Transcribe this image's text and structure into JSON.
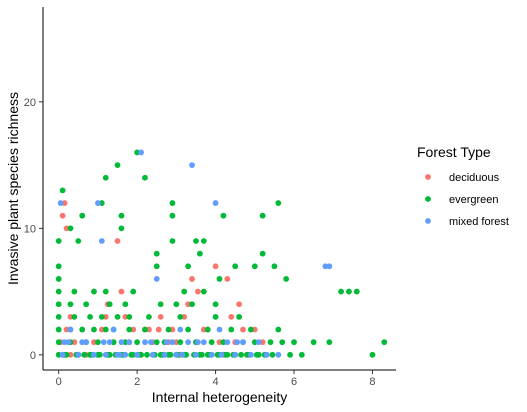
{
  "chart_data": {
    "type": "scatter",
    "xlabel": "Internal heterogeneity",
    "ylabel": "Invasive plant species richness",
    "xlim": [
      -0.4,
      8.6
    ],
    "ylim": [
      -1.2,
      27.5
    ],
    "x_ticks": [
      0,
      2,
      4,
      6,
      8
    ],
    "y_ticks": [
      0,
      10,
      20
    ],
    "x_tick_labels": [
      "0",
      "2",
      "4",
      "6",
      "8"
    ],
    "y_tick_labels": [
      "0",
      "10",
      "20"
    ],
    "grid": false,
    "legend": {
      "title": "Forest Type",
      "placement": "right"
    },
    "series": [
      {
        "name": "deciduous",
        "color": "#F8766D",
        "points": [
          [
            0.1,
            11
          ],
          [
            0.15,
            12
          ],
          [
            0.2,
            10
          ],
          [
            0.05,
            1
          ],
          [
            0.1,
            0
          ],
          [
            0.2,
            2
          ],
          [
            0.3,
            0
          ],
          [
            0.4,
            1
          ],
          [
            0.5,
            0
          ],
          [
            0.7,
            0
          ],
          [
            0.9,
            1
          ],
          [
            1.0,
            0
          ],
          [
            1.1,
            2
          ],
          [
            1.2,
            3
          ],
          [
            1.3,
            0
          ],
          [
            1.5,
            9
          ],
          [
            1.6,
            5
          ],
          [
            1.7,
            3
          ],
          [
            1.8,
            1
          ],
          [
            1.9,
            2
          ],
          [
            2.0,
            0
          ],
          [
            2.2,
            2
          ],
          [
            2.4,
            1
          ],
          [
            2.6,
            3
          ],
          [
            2.7,
            0
          ],
          [
            2.9,
            2
          ],
          [
            3.0,
            1
          ],
          [
            3.1,
            0
          ],
          [
            3.2,
            3
          ],
          [
            3.4,
            6
          ],
          [
            3.5,
            1
          ],
          [
            3.6,
            0
          ],
          [
            3.8,
            2
          ],
          [
            4.0,
            7
          ],
          [
            4.1,
            1
          ],
          [
            4.2,
            0
          ],
          [
            4.3,
            6
          ],
          [
            4.5,
            1
          ],
          [
            4.6,
            4
          ],
          [
            4.8,
            0
          ],
          [
            5.0,
            2
          ],
          [
            5.2,
            1
          ],
          [
            0.3,
            3
          ],
          [
            0.6,
            2
          ],
          [
            0.8,
            0
          ],
          [
            1.4,
            1
          ],
          [
            2.1,
            0
          ],
          [
            2.3,
            2
          ],
          [
            2.8,
            1
          ],
          [
            3.3,
            4
          ],
          [
            3.7,
            2
          ],
          [
            3.9,
            0
          ],
          [
            4.4,
            3
          ],
          [
            4.7,
            2
          ],
          [
            1.25,
            4
          ],
          [
            2.55,
            2
          ],
          [
            3.05,
            0
          ],
          [
            3.55,
            5
          ]
        ]
      },
      {
        "name": "evergreen",
        "color": "#00BA38",
        "points": [
          [
            0,
            0
          ],
          [
            0,
            1
          ],
          [
            0,
            2
          ],
          [
            0,
            3
          ],
          [
            0,
            4
          ],
          [
            0,
            5
          ],
          [
            0,
            6
          ],
          [
            0,
            7
          ],
          [
            0,
            9
          ],
          [
            0.1,
            13
          ],
          [
            0.2,
            0
          ],
          [
            0.3,
            10
          ],
          [
            0.3,
            1
          ],
          [
            0.3,
            2
          ],
          [
            0.3,
            4
          ],
          [
            0.4,
            3
          ],
          [
            0.4,
            5
          ],
          [
            0.5,
            9
          ],
          [
            0.5,
            0
          ],
          [
            0.6,
            11
          ],
          [
            0.6,
            2
          ],
          [
            0.7,
            1
          ],
          [
            0.7,
            4
          ],
          [
            0.8,
            0
          ],
          [
            0.8,
            3
          ],
          [
            0.9,
            5
          ],
          [
            0.9,
            2
          ],
          [
            1.0,
            1
          ],
          [
            1.0,
            0
          ],
          [
            1.1,
            3
          ],
          [
            1.1,
            12
          ],
          [
            1.2,
            2
          ],
          [
            1.2,
            5
          ],
          [
            1.2,
            14
          ],
          [
            1.3,
            4
          ],
          [
            1.3,
            0
          ],
          [
            1.4,
            1
          ],
          [
            1.4,
            2
          ],
          [
            1.5,
            15
          ],
          [
            1.5,
            3
          ],
          [
            1.6,
            11
          ],
          [
            1.6,
            10
          ],
          [
            1.6,
            0
          ],
          [
            1.7,
            1
          ],
          [
            1.7,
            4
          ],
          [
            1.8,
            3
          ],
          [
            1.8,
            2
          ],
          [
            1.9,
            0
          ],
          [
            1.9,
            5
          ],
          [
            2.0,
            1
          ],
          [
            2.0,
            16
          ],
          [
            2.1,
            0
          ],
          [
            2.2,
            14
          ],
          [
            2.2,
            2
          ],
          [
            2.3,
            3
          ],
          [
            2.4,
            0
          ],
          [
            2.5,
            1
          ],
          [
            2.5,
            7
          ],
          [
            2.5,
            8
          ],
          [
            2.6,
            0
          ],
          [
            2.6,
            4
          ],
          [
            2.7,
            1
          ],
          [
            2.8,
            2
          ],
          [
            2.8,
            0
          ],
          [
            2.9,
            9
          ],
          [
            2.9,
            11
          ],
          [
            2.9,
            12
          ],
          [
            3.0,
            4
          ],
          [
            3.0,
            0
          ],
          [
            3.1,
            3
          ],
          [
            3.1,
            1
          ],
          [
            3.2,
            5
          ],
          [
            3.2,
            0
          ],
          [
            3.3,
            2
          ],
          [
            3.3,
            7
          ],
          [
            3.4,
            4
          ],
          [
            3.5,
            9
          ],
          [
            3.5,
            1
          ],
          [
            3.6,
            8
          ],
          [
            3.6,
            0
          ],
          [
            3.7,
            9
          ],
          [
            3.7,
            5
          ],
          [
            3.8,
            2
          ],
          [
            3.8,
            0
          ],
          [
            3.9,
            1
          ],
          [
            4.0,
            4
          ],
          [
            4.0,
            3
          ],
          [
            4.1,
            0
          ],
          [
            4.1,
            6
          ],
          [
            4.2,
            1
          ],
          [
            4.2,
            11
          ],
          [
            4.3,
            0
          ],
          [
            4.4,
            2
          ],
          [
            4.5,
            7
          ],
          [
            4.5,
            0
          ],
          [
            4.6,
            3
          ],
          [
            4.7,
            1
          ],
          [
            4.8,
            0
          ],
          [
            4.9,
            2
          ],
          [
            5.0,
            1
          ],
          [
            5.0,
            7
          ],
          [
            5.1,
            0
          ],
          [
            5.2,
            8
          ],
          [
            5.2,
            11
          ],
          [
            5.3,
            0
          ],
          [
            5.4,
            1
          ],
          [
            5.5,
            7
          ],
          [
            5.6,
            2
          ],
          [
            5.6,
            12
          ],
          [
            5.7,
            1
          ],
          [
            5.8,
            6
          ],
          [
            5.9,
            0
          ],
          [
            6.0,
            1
          ],
          [
            6.2,
            0
          ],
          [
            6.5,
            1
          ],
          [
            6.9,
            1
          ],
          [
            7.2,
            5
          ],
          [
            7.4,
            5
          ],
          [
            7.6,
            5
          ],
          [
            8.0,
            0
          ],
          [
            8.3,
            1
          ],
          [
            0.15,
            0
          ],
          [
            0.45,
            0
          ],
          [
            0.65,
            0
          ],
          [
            0.85,
            0
          ],
          [
            1.05,
            0
          ],
          [
            1.25,
            0
          ],
          [
            1.45,
            0
          ],
          [
            1.65,
            0
          ],
          [
            1.85,
            0
          ],
          [
            2.05,
            0
          ],
          [
            2.25,
            0
          ],
          [
            2.45,
            0
          ],
          [
            2.65,
            0
          ],
          [
            2.85,
            0
          ],
          [
            3.05,
            0
          ],
          [
            3.25,
            0
          ],
          [
            3.45,
            0
          ],
          [
            3.65,
            0
          ],
          [
            3.85,
            0
          ],
          [
            4.05,
            0
          ],
          [
            4.25,
            0
          ],
          [
            4.45,
            0
          ],
          [
            4.65,
            0
          ],
          [
            4.85,
            0
          ],
          [
            5.05,
            0
          ],
          [
            5.25,
            0
          ],
          [
            5.45,
            0
          ]
        ]
      },
      {
        "name": "mixed forest",
        "color": "#619CFF",
        "points": [
          [
            0.05,
            12
          ],
          [
            0.1,
            0
          ],
          [
            0.15,
            1
          ],
          [
            0.3,
            2
          ],
          [
            0.5,
            0
          ],
          [
            0.7,
            1
          ],
          [
            0.9,
            0
          ],
          [
            1.0,
            12
          ],
          [
            1.1,
            9
          ],
          [
            1.2,
            0
          ],
          [
            1.3,
            1
          ],
          [
            1.4,
            2
          ],
          [
            1.5,
            0
          ],
          [
            1.6,
            1
          ],
          [
            1.7,
            0
          ],
          [
            1.8,
            1
          ],
          [
            2.0,
            0
          ],
          [
            2.1,
            16
          ],
          [
            2.2,
            1
          ],
          [
            2.4,
            0
          ],
          [
            2.5,
            6
          ],
          [
            2.7,
            0
          ],
          [
            2.9,
            1
          ],
          [
            3.0,
            0
          ],
          [
            3.1,
            2
          ],
          [
            3.3,
            1
          ],
          [
            3.4,
            15
          ],
          [
            3.5,
            0
          ],
          [
            3.7,
            1
          ],
          [
            3.9,
            0
          ],
          [
            4.0,
            12
          ],
          [
            4.1,
            2
          ],
          [
            4.3,
            1
          ],
          [
            4.5,
            0
          ],
          [
            4.7,
            1
          ],
          [
            4.9,
            0
          ],
          [
            5.1,
            1
          ],
          [
            5.3,
            0
          ],
          [
            5.6,
            0
          ],
          [
            6.8,
            7
          ],
          [
            6.9,
            7
          ],
          [
            0.25,
            1
          ],
          [
            0.6,
            1
          ],
          [
            1.15,
            1
          ],
          [
            1.55,
            0
          ],
          [
            2.35,
            1
          ],
          [
            2.75,
            1
          ],
          [
            3.15,
            0
          ],
          [
            3.55,
            1
          ],
          [
            4.15,
            0
          ],
          [
            4.55,
            1
          ]
        ]
      }
    ]
  }
}
